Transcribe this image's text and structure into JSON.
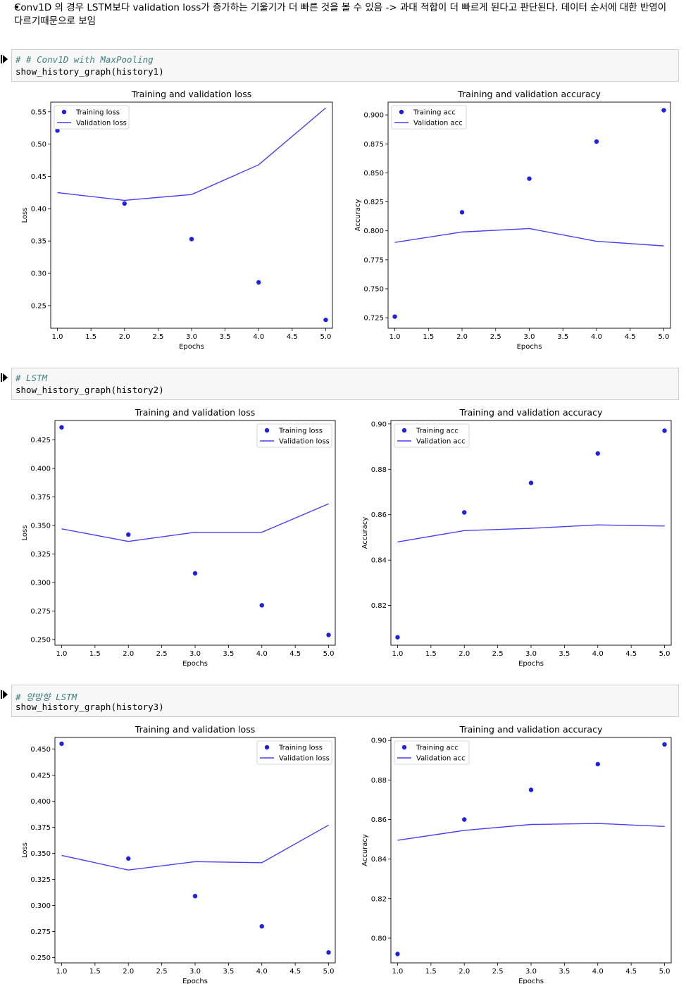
{
  "note": {
    "bullet": "•",
    "text": "Conv1D 의 경우 LSTM보다 validation loss가 증가하는 기울기가 더 빠른 것을 볼 수 있음 -> 과대 적합이 더 빠르게 된다고 판단된다. 데이터 순서에 대한 반영이 다르기때문으로 보임"
  },
  "cells": [
    {
      "comment": "# # Conv1D with MaxPooling",
      "code": "show_history_graph(history1)"
    },
    {
      "comment": "# LSTM",
      "code": "show_history_graph(history2)"
    },
    {
      "comment": "# 양방향 LSTM",
      "code": "show_history_graph(history3)"
    }
  ],
  "colors": {
    "marker": "#1f1fe6",
    "line": "#4a3ff0",
    "code_bg": "#f7f7f7",
    "comment": "#408080"
  },
  "chart_data": [
    {
      "type": "scatter+line",
      "title": "Training and validation loss",
      "xlabel": "Epochs",
      "ylabel": "Loss",
      "x": [
        1,
        2,
        3,
        4,
        5
      ],
      "xlim": [
        0.9,
        5.1
      ],
      "ylim": [
        0.215,
        0.565
      ],
      "xticks": [
        1.0,
        1.5,
        2.0,
        2.5,
        3.0,
        3.5,
        4.0,
        4.5,
        5.0
      ],
      "yticks": [
        0.25,
        0.3,
        0.35,
        0.4,
        0.45,
        0.5,
        0.55
      ],
      "ydec": 2,
      "legend": "top-left",
      "series": [
        {
          "name": "Training loss",
          "style": "dots",
          "values": [
            0.521,
            0.408,
            0.353,
            0.286,
            0.228
          ]
        },
        {
          "name": "Validation loss",
          "style": "line",
          "values": [
            0.425,
            0.413,
            0.422,
            0.468,
            0.556
          ]
        }
      ]
    },
    {
      "type": "scatter+line",
      "title": "Training and validation accuracy",
      "xlabel": "Epochs",
      "ylabel": "Accuracy",
      "x": [
        1,
        2,
        3,
        4,
        5
      ],
      "xlim": [
        0.9,
        5.1
      ],
      "ylim": [
        0.716,
        0.911
      ],
      "xticks": [
        1.0,
        1.5,
        2.0,
        2.5,
        3.0,
        3.5,
        4.0,
        4.5,
        5.0
      ],
      "yticks": [
        0.725,
        0.75,
        0.775,
        0.8,
        0.825,
        0.85,
        0.875,
        0.9
      ],
      "ydec": 3,
      "legend": "top-left",
      "series": [
        {
          "name": "Training acc",
          "style": "dots",
          "values": [
            0.726,
            0.816,
            0.845,
            0.877,
            0.904
          ]
        },
        {
          "name": "Validation acc",
          "style": "line",
          "values": [
            0.79,
            0.799,
            0.802,
            0.791,
            0.787
          ]
        }
      ]
    },
    {
      "type": "scatter+line",
      "title": "Training and validation loss",
      "xlabel": "Epochs",
      "ylabel": "Loss",
      "x": [
        1,
        2,
        3,
        4,
        5
      ],
      "xlim": [
        0.9,
        5.1
      ],
      "ylim": [
        0.245,
        0.442
      ],
      "xticks": [
        1.0,
        1.5,
        2.0,
        2.5,
        3.0,
        3.5,
        4.0,
        4.5,
        5.0
      ],
      "yticks": [
        0.25,
        0.275,
        0.3,
        0.325,
        0.35,
        0.375,
        0.4,
        0.425
      ],
      "ydec": 3,
      "legend": "top-right",
      "series": [
        {
          "name": "Training loss",
          "style": "dots",
          "values": [
            0.436,
            0.342,
            0.308,
            0.28,
            0.254
          ]
        },
        {
          "name": "Validation loss",
          "style": "line",
          "values": [
            0.347,
            0.336,
            0.344,
            0.344,
            0.369
          ]
        }
      ]
    },
    {
      "type": "scatter+line",
      "title": "Training and validation accuracy",
      "xlabel": "Epochs",
      "ylabel": "Accuracy",
      "x": [
        1,
        2,
        3,
        4,
        5
      ],
      "xlim": [
        0.9,
        5.1
      ],
      "ylim": [
        0.8025,
        0.9015
      ],
      "xticks": [
        1.0,
        1.5,
        2.0,
        2.5,
        3.0,
        3.5,
        4.0,
        4.5,
        5.0
      ],
      "yticks": [
        0.82,
        0.84,
        0.86,
        0.88,
        0.9
      ],
      "ydec": 2,
      "legend": "top-left",
      "series": [
        {
          "name": "Training acc",
          "style": "dots",
          "values": [
            0.806,
            0.861,
            0.874,
            0.887,
            0.897
          ]
        },
        {
          "name": "Validation acc",
          "style": "line",
          "values": [
            0.848,
            0.853,
            0.854,
            0.8555,
            0.855
          ]
        }
      ]
    },
    {
      "type": "scatter+line",
      "title": "Training and validation loss",
      "xlabel": "Epochs",
      "ylabel": "Loss",
      "x": [
        1,
        2,
        3,
        4,
        5
      ],
      "xlim": [
        0.9,
        5.1
      ],
      "ylim": [
        0.245,
        0.461
      ],
      "xticks": [
        1.0,
        1.5,
        2.0,
        2.5,
        3.0,
        3.5,
        4.0,
        4.5,
        5.0
      ],
      "yticks": [
        0.25,
        0.275,
        0.3,
        0.325,
        0.35,
        0.375,
        0.4,
        0.425,
        0.45
      ],
      "ydec": 3,
      "legend": "top-right",
      "series": [
        {
          "name": "Training loss",
          "style": "dots",
          "values": [
            0.455,
            0.345,
            0.309,
            0.28,
            0.255
          ]
        },
        {
          "name": "Validation loss",
          "style": "line",
          "values": [
            0.348,
            0.334,
            0.342,
            0.341,
            0.377
          ]
        }
      ]
    },
    {
      "type": "scatter+line",
      "title": "Training and validation accuracy",
      "xlabel": "Epochs",
      "ylabel": "Accuracy",
      "x": [
        1,
        2,
        3,
        4,
        5
      ],
      "xlim": [
        0.9,
        5.1
      ],
      "ylim": [
        0.7875,
        0.9015
      ],
      "xticks": [
        1.0,
        1.5,
        2.0,
        2.5,
        3.0,
        3.5,
        4.0,
        4.5,
        5.0
      ],
      "yticks": [
        0.8,
        0.82,
        0.84,
        0.86,
        0.88,
        0.9
      ],
      "ydec": 2,
      "legend": "top-left",
      "series": [
        {
          "name": "Training acc",
          "style": "dots",
          "values": [
            0.792,
            0.86,
            0.875,
            0.888,
            0.898
          ]
        },
        {
          "name": "Validation acc",
          "style": "line",
          "values": [
            0.8495,
            0.8545,
            0.8575,
            0.858,
            0.8565
          ]
        }
      ]
    }
  ]
}
